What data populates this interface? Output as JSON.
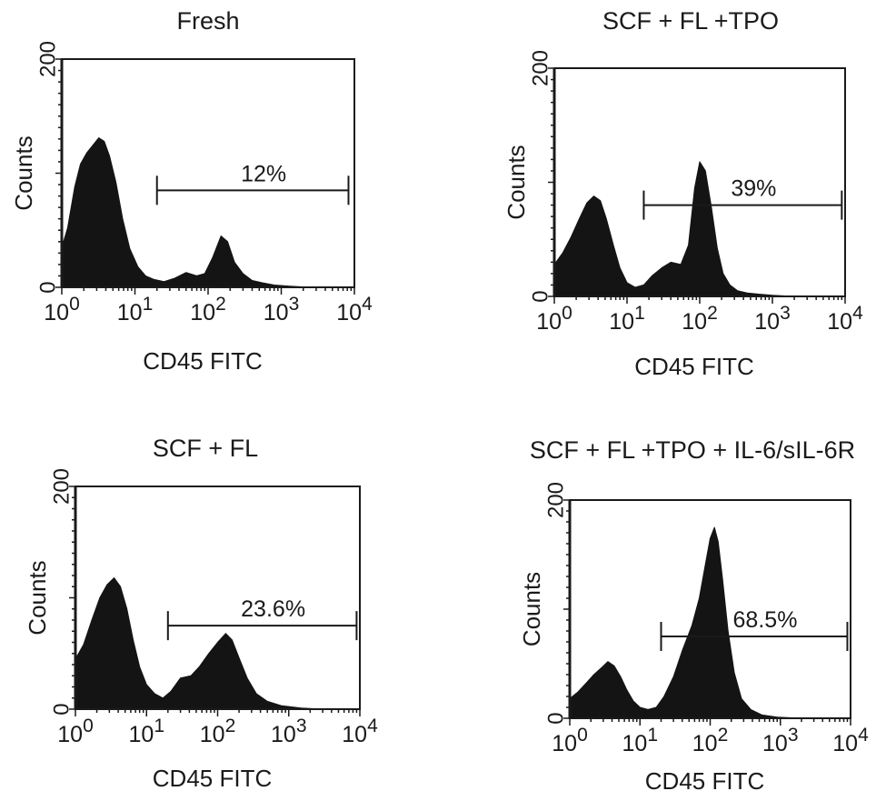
{
  "chart_data": [
    {
      "type": "area",
      "title": "Fresh",
      "xlabel": "CD45 FITC",
      "ylabel": "Counts",
      "xscale": "log",
      "xlim": [
        1,
        10000
      ],
      "ylim": [
        0,
        200
      ],
      "yticks": [
        "0",
        "200"
      ],
      "xticks": [
        {
          "base": "10",
          "exp": "0"
        },
        {
          "base": "10",
          "exp": "1"
        },
        {
          "base": "10",
          "exp": "2"
        },
        {
          "base": "10",
          "exp": "3"
        },
        {
          "base": "10",
          "exp": "4"
        }
      ],
      "x": [
        1,
        1.2,
        1.5,
        1.8,
        2.2,
        2.7,
        3.2,
        3.8,
        4.5,
        5.5,
        6.8,
        8.5,
        11,
        14,
        18,
        25,
        35,
        50,
        70,
        90,
        115,
        150,
        185,
        230,
        300,
        400,
        550,
        800,
        1300,
        2500,
        10000
      ],
      "values": [
        35,
        52,
        88,
        108,
        118,
        125,
        131,
        128,
        115,
        92,
        60,
        34,
        18,
        10,
        7,
        5,
        8,
        13,
        10,
        12,
        26,
        45,
        40,
        22,
        12,
        6,
        4,
        2,
        1,
        0,
        0
      ],
      "gate": {
        "from": 20,
        "to": 8300,
        "y": 85,
        "label": "12%"
      }
    },
    {
      "type": "area",
      "title": "SCF + FL +TPO",
      "xlabel": "CD45 FITC",
      "ylabel": "Counts",
      "xscale": "log",
      "xlim": [
        1,
        10000
      ],
      "ylim": [
        0,
        200
      ],
      "yticks": [
        "0",
        "200"
      ],
      "xticks": [
        {
          "base": "10",
          "exp": "0"
        },
        {
          "base": "10",
          "exp": "1"
        },
        {
          "base": "10",
          "exp": "2"
        },
        {
          "base": "10",
          "exp": "3"
        },
        {
          "base": "10",
          "exp": "4"
        }
      ],
      "x": [
        1,
        1.3,
        1.7,
        2.2,
        2.8,
        3.5,
        4.3,
        5.2,
        6.5,
        8,
        10,
        13,
        17,
        22,
        30,
        40,
        55,
        70,
        85,
        100,
        120,
        145,
        175,
        210,
        260,
        330,
        450,
        650,
        1000,
        2000,
        10000
      ],
      "values": [
        28,
        38,
        52,
        68,
        82,
        88,
        84,
        68,
        45,
        25,
        12,
        8,
        10,
        18,
        25,
        30,
        28,
        45,
        95,
        118,
        110,
        78,
        42,
        20,
        10,
        5,
        3,
        2,
        1,
        0,
        0
      ],
      "gate": {
        "from": 17,
        "to": 9000,
        "y": 80,
        "label": "39%"
      }
    },
    {
      "type": "area",
      "title": "SCF + FL",
      "xlabel": "CD45 FITC",
      "ylabel": "Counts",
      "xscale": "log",
      "xlim": [
        1,
        10000
      ],
      "ylim": [
        0,
        200
      ],
      "yticks": [
        "0",
        "200"
      ],
      "xticks": [
        {
          "base": "10",
          "exp": "0"
        },
        {
          "base": "10",
          "exp": "1"
        },
        {
          "base": "10",
          "exp": "2"
        },
        {
          "base": "10",
          "exp": "3"
        },
        {
          "base": "10",
          "exp": "4"
        }
      ],
      "x": [
        1,
        1.3,
        1.7,
        2.2,
        2.8,
        3.5,
        4.3,
        5.3,
        6.5,
        8,
        10,
        13,
        17,
        22,
        30,
        42,
        55,
        75,
        100,
        130,
        160,
        200,
        260,
        350,
        500,
        800,
        1500,
        3000,
        10000
      ],
      "values": [
        45,
        58,
        80,
        100,
        112,
        118,
        110,
        90,
        62,
        38,
        22,
        14,
        10,
        16,
        28,
        30,
        38,
        50,
        60,
        68,
        62,
        46,
        28,
        14,
        7,
        3,
        1,
        0,
        0
      ],
      "gate": {
        "from": 20,
        "to": 9000,
        "y": 75,
        "label": "23.6%"
      }
    },
    {
      "type": "area",
      "title": "SCF + FL +TPO + IL-6/sIL-6R",
      "xlabel": "CD45 FITC",
      "ylabel": "Counts",
      "xscale": "log",
      "xlim": [
        1,
        10000
      ],
      "ylim": [
        0,
        200
      ],
      "yticks": [
        "0",
        "200"
      ],
      "xticks": [
        {
          "base": "10",
          "exp": "0"
        },
        {
          "base": "10",
          "exp": "1"
        },
        {
          "base": "10",
          "exp": "2"
        },
        {
          "base": "10",
          "exp": "3"
        },
        {
          "base": "10",
          "exp": "4"
        }
      ],
      "x": [
        1,
        1.3,
        1.7,
        2.2,
        2.8,
        3.5,
        4.3,
        5.3,
        6.5,
        8,
        10,
        13,
        17,
        22,
        30,
        40,
        55,
        70,
        85,
        100,
        115,
        130,
        150,
        180,
        220,
        280,
        380,
        550,
        900,
        2000,
        10000
      ],
      "values": [
        18,
        24,
        32,
        40,
        46,
        52,
        48,
        38,
        26,
        16,
        10,
        8,
        10,
        20,
        38,
        62,
        85,
        110,
        140,
        165,
        175,
        162,
        128,
        80,
        42,
        18,
        8,
        3,
        1,
        0,
        0
      ],
      "gate": {
        "from": 20,
        "to": 9000,
        "y": 75,
        "label": "68.5%"
      }
    }
  ]
}
